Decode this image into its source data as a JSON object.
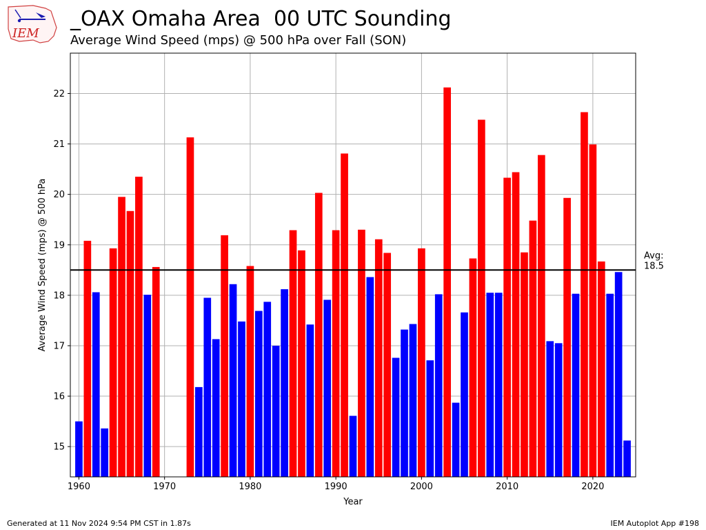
{
  "header": {
    "title": "_OAX Omaha Area  00 UTC Sounding",
    "subtitle": "Average Wind Speed (mps) @ 500 hPa over Fall (SON)",
    "logo_text": "IEM"
  },
  "footer": {
    "generated": "Generated at 11 Nov 2024 9:54 PM CST in 1.87s",
    "app": "IEM Autoplot App #198"
  },
  "colors": {
    "above_avg": "#ff0000",
    "below_avg": "#0000ff",
    "avg_line": "#000000",
    "grid": "#b0b0b0"
  },
  "chart_data": {
    "type": "bar",
    "title": "_OAX Omaha Area  00 UTC Sounding",
    "subtitle": "Average Wind Speed (mps) @ 500 hPa over Fall (SON)",
    "xlabel": "Year",
    "ylabel": "Average Wind Speed (mps) @ 500 hPa",
    "xlim": [
      1959,
      2025
    ],
    "ylim": [
      14.4,
      22.8
    ],
    "xticks": [
      1960,
      1970,
      1980,
      1990,
      2000,
      2010,
      2020
    ],
    "yticks": [
      15,
      16,
      17,
      18,
      19,
      20,
      21,
      22
    ],
    "grid": true,
    "average": 18.5,
    "average_label": "Avg:\n18.5",
    "x": [
      1960,
      1961,
      1962,
      1963,
      1964,
      1965,
      1966,
      1967,
      1968,
      1969,
      1973,
      1974,
      1975,
      1976,
      1977,
      1978,
      1979,
      1980,
      1981,
      1982,
      1983,
      1984,
      1985,
      1986,
      1987,
      1988,
      1989,
      1990,
      1991,
      1992,
      1993,
      1994,
      1995,
      1996,
      1997,
      1998,
      1999,
      2000,
      2001,
      2002,
      2003,
      2004,
      2005,
      2006,
      2007,
      2008,
      2009,
      2010,
      2011,
      2012,
      2013,
      2014,
      2015,
      2016,
      2017,
      2018,
      2019,
      2020,
      2021,
      2022,
      2023,
      2024
    ],
    "values": [
      15.5,
      19.08,
      18.06,
      15.36,
      18.93,
      19.95,
      19.67,
      20.35,
      18.01,
      18.56,
      21.13,
      16.18,
      17.95,
      17.13,
      19.19,
      18.22,
      17.48,
      18.58,
      17.69,
      17.87,
      17.0,
      18.12,
      19.29,
      18.89,
      17.42,
      20.03,
      17.91,
      19.29,
      20.81,
      15.61,
      19.3,
      18.36,
      19.11,
      18.84,
      16.76,
      17.32,
      17.43,
      18.93,
      16.71,
      18.02,
      22.12,
      15.87,
      17.66,
      18.73,
      21.48,
      18.05,
      18.05,
      20.33,
      20.44,
      18.85,
      19.48,
      20.78,
      17.09,
      17.05,
      19.93,
      18.03,
      21.63,
      20.99,
      18.67,
      18.03,
      18.46,
      15.12
    ]
  }
}
